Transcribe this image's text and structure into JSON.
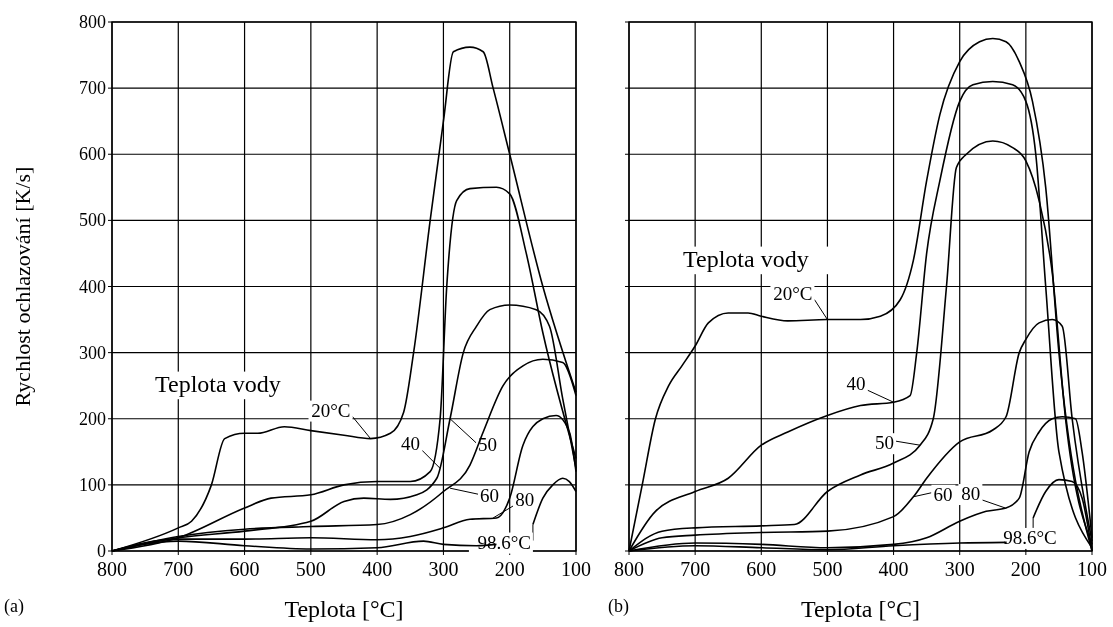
{
  "chart_data": [
    {
      "type": "line",
      "xlabel": "Teplota [°C]",
      "ylabel": "Rychlost ochlazování [K/s]",
      "xlim": [
        800,
        100
      ],
      "ylim": [
        0,
        800
      ],
      "xticks": [
        800,
        700,
        600,
        500,
        400,
        300,
        200,
        100
      ],
      "yticks": [
        0,
        100,
        200,
        300,
        400,
        500,
        600,
        700,
        800
      ],
      "grid": true,
      "line_style": "solid",
      "series": [
        {
          "color": "#000000",
          "x": [
            800,
            700,
            680,
            650,
            630,
            600,
            580,
            540,
            500,
            450,
            410,
            380,
            360,
            345,
            320,
            300,
            285,
            260,
            240,
            225,
            200,
            150,
            100
          ],
          "values": [
            0,
            35,
            45,
            100,
            170,
            178,
            178,
            188,
            182,
            175,
            170,
            178,
            210,
            300,
            500,
            650,
            755,
            762,
            755,
            700,
            600,
            400,
            240
          ]
        },
        {
          "color": "#000000",
          "x": [
            800,
            700,
            600,
            560,
            500,
            450,
            400,
            350,
            320,
            305,
            295,
            280,
            260,
            220,
            200,
            175,
            150,
            100
          ],
          "values": [
            0,
            20,
            65,
            80,
            85,
            100,
            105,
            105,
            120,
            200,
            400,
            530,
            548,
            550,
            540,
            450,
            330,
            140
          ]
        },
        {
          "color": "#000000",
          "x": [
            800,
            700,
            600,
            500,
            450,
            420,
            380,
            340,
            310,
            290,
            270,
            250,
            230,
            200,
            160,
            140,
            120,
            100
          ],
          "values": [
            0,
            20,
            30,
            45,
            75,
            80,
            78,
            85,
            110,
            200,
            300,
            340,
            365,
            372,
            365,
            340,
            230,
            125
          ]
        },
        {
          "color": "#000000",
          "x": [
            800,
            700,
            600,
            500,
            400,
            350,
            300,
            260,
            240,
            210,
            180,
            150,
            120,
            100
          ],
          "values": [
            0,
            22,
            33,
            37,
            40,
            55,
            90,
            130,
            180,
            250,
            280,
            290,
            285,
            235
          ]
        },
        {
          "color": "#000000",
          "x": [
            800,
            700,
            600,
            500,
            400,
            350,
            300,
            260,
            220,
            200,
            180,
            150,
            130,
            110,
            100
          ],
          "values": [
            0,
            18,
            18,
            20,
            17,
            22,
            35,
            48,
            50,
            80,
            160,
            200,
            205,
            180,
            120
          ]
        },
        {
          "color": "#000000",
          "x": [
            800,
            700,
            600,
            500,
            400,
            330,
            300,
            250,
            220,
            190,
            165,
            150,
            135,
            120,
            110,
            100
          ],
          "values": [
            0,
            15,
            8,
            3,
            5,
            15,
            10,
            8,
            10,
            null,
            40,
            80,
            100,
            110,
            105,
            90
          ]
        }
      ],
      "annotations": [
        "Teplota vody",
        "(a)",
        {
          "text": "20°C",
          "x": 410,
          "y": 170
        },
        {
          "text": "40",
          "x": 305,
          "y": 125
        },
        {
          "text": "50",
          "x": 290,
          "y": 200
        },
        {
          "text": "60",
          "x": 290,
          "y": 95
        },
        {
          "text": "80",
          "x": 225,
          "y": 50
        },
        {
          "text": "98.6°C",
          "x": 165,
          "y": 40
        }
      ]
    },
    {
      "type": "line",
      "xlabel": "Teplota [°C]",
      "xlim": [
        800,
        100
      ],
      "ylim": [
        0,
        800
      ],
      "xticks": [
        800,
        700,
        600,
        500,
        400,
        300,
        200,
        100
      ],
      "yticks": [
        0,
        100,
        200,
        300,
        400,
        500,
        600,
        700,
        800
      ],
      "grid": true,
      "line_style": "solid",
      "tick_labels": "x",
      "series": [
        {
          "color": "#000000",
          "x": [
            800,
            780,
            760,
            740,
            720,
            700,
            680,
            650,
            620,
            600,
            560,
            500,
            450,
            420,
            390,
            370,
            350,
            330,
            300,
            270,
            250,
            230,
            210,
            190,
            170,
            150,
            100
          ],
          "values": [
            0,
            100,
            200,
            250,
            280,
            310,
            345,
            360,
            360,
            355,
            348,
            350,
            350,
            355,
            380,
            440,
            560,
            660,
            740,
            770,
            775,
            770,
            740,
            680,
            550,
            300,
            0
          ]
        },
        {
          "color": "#000000",
          "x": [
            800,
            760,
            700,
            650,
            600,
            560,
            500,
            450,
            400,
            375,
            365,
            350,
            330,
            300,
            280,
            250,
            220,
            200,
            185,
            170,
            150,
            100
          ],
          "values": [
            0,
            60,
            90,
            110,
            160,
            180,
            205,
            220,
            225,
            235,
            300,
            450,
            560,
            680,
            705,
            710,
            705,
            680,
            600,
            400,
            150,
            5
          ]
        },
        {
          "color": "#000000",
          "x": [
            800,
            750,
            700,
            600,
            550,
            500,
            450,
            400,
            360,
            340,
            320,
            305,
            290,
            250,
            220,
            200,
            180,
            160,
            140,
            100
          ],
          "values": [
            0,
            30,
            35,
            38,
            40,
            90,
            115,
            133,
            160,
            200,
            400,
            580,
            600,
            620,
            610,
            590,
            530,
            420,
            200,
            10
          ]
        },
        {
          "color": "#000000",
          "x": [
            800,
            750,
            700,
            600,
            500,
            400,
            370,
            350,
            300,
            250,
            230,
            210,
            200,
            180,
            160,
            145,
            130,
            100
          ],
          "values": [
            0,
            20,
            24,
            28,
            30,
            52,
            82,
            110,
            165,
            183,
            203,
            300,
            320,
            345,
            350,
            340,
            200,
            15
          ]
        },
        {
          "color": "#000000",
          "x": [
            800,
            700,
            600,
            500,
            400,
            350,
            300,
            260,
            230,
            210,
            195,
            180,
            160,
            145,
            125,
            115,
            100
          ],
          "values": [
            0,
            12,
            10,
            5,
            10,
            20,
            45,
            60,
            65,
            80,
            150,
            180,
            200,
            203,
            200,
            150,
            20
          ]
        },
        {
          "color": "#000000",
          "x": [
            800,
            700,
            600,
            500,
            400,
            300,
            229,
            210,
            189,
            170,
            150,
            130,
            115,
            100
          ],
          "values": [
            0,
            8,
            5,
            2,
            8,
            12,
            13,
            null,
            50,
            90,
            108,
            105,
            80,
            0
          ]
        }
      ],
      "annotations": [
        "Teplota vody",
        "(b)",
        {
          "text": "20°C",
          "x": 500,
          "y": 350
        },
        {
          "text": "40",
          "x": 400,
          "y": 225
        },
        {
          "text": "50",
          "x": 360,
          "y": 160
        },
        {
          "text": "60",
          "x": 370,
          "y": 82
        },
        {
          "text": "80",
          "x": 231,
          "y": 65
        },
        {
          "text": "98.6°C",
          "x": 189,
          "y": 50
        }
      ]
    }
  ]
}
